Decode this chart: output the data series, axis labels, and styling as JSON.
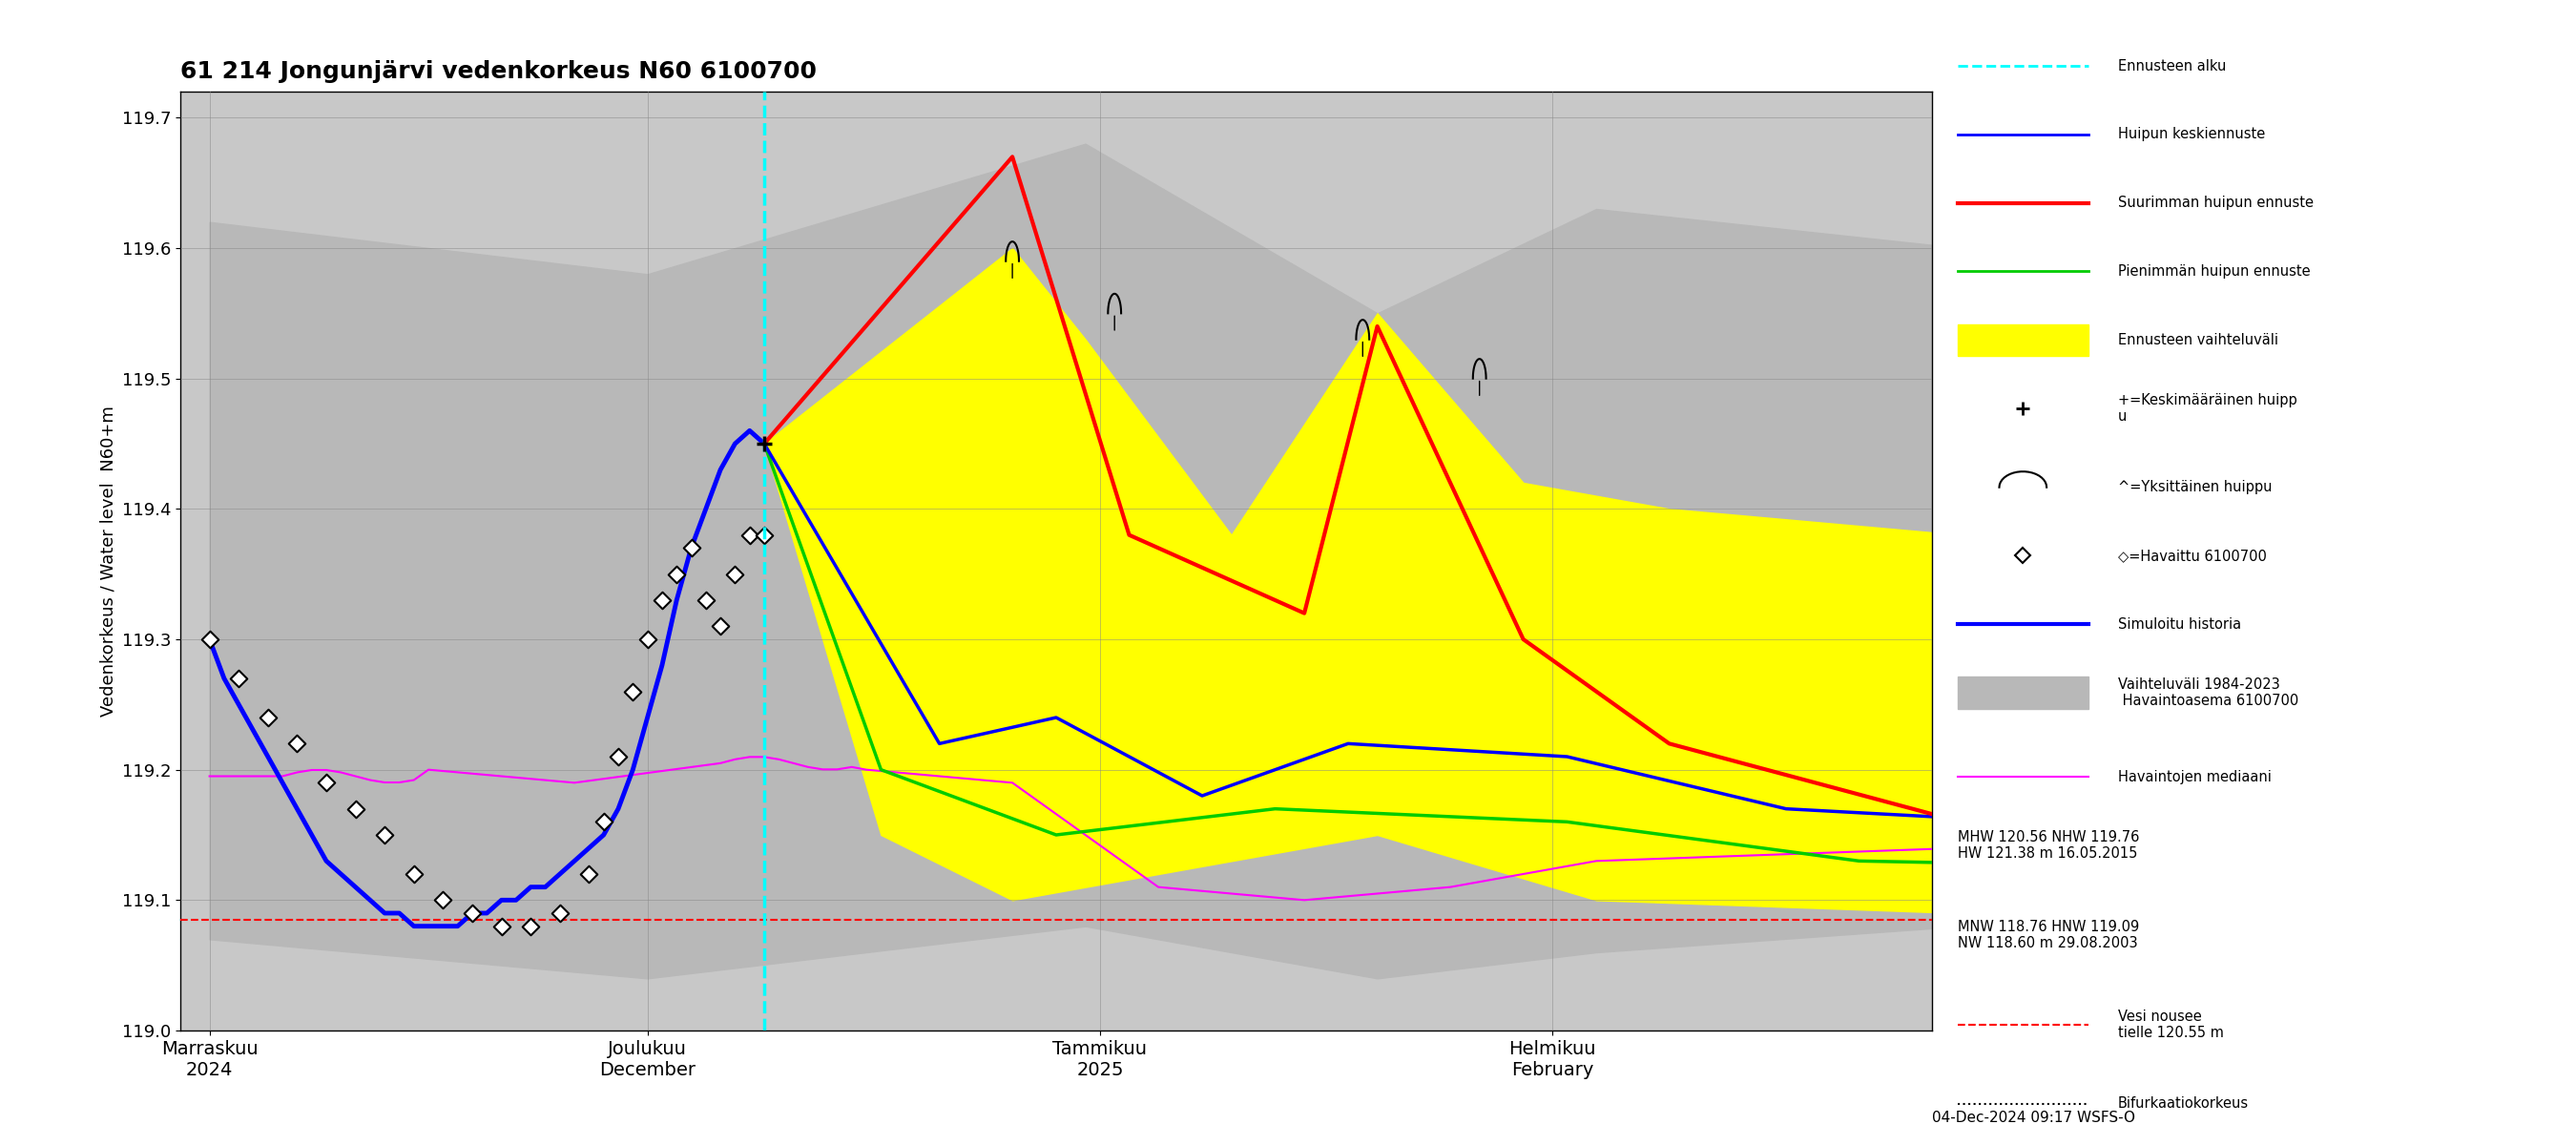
{
  "title": "61 214 Jongunjärvi vedenkorkeus N60 6100700",
  "ylabel1": "Vedenkorkeus / Water level",
  "ylabel2": "N60+m",
  "xlabel_bottom": "04-Dec-2024 09:17 WSFS-O",
  "ylim": [
    119.0,
    119.72
  ],
  "yticks": [
    119.0,
    119.1,
    119.2,
    119.3,
    119.4,
    119.5,
    119.6,
    119.7
  ],
  "background_color": "#ffffff",
  "plot_bg_color": "#c8c8c8",
  "red_dashed_y": 119.085,
  "forecast_start_x": 38,
  "legend_items": [
    {
      "label": "Ennusteen alku",
      "color": "#00ffff",
      "lw": 2,
      "ls": "dashed"
    },
    {
      "label": "Huipun keskiennuste",
      "color": "#0000ff",
      "lw": 2,
      "ls": "solid"
    },
    {
      "label": "Suurimman huipun ennuste",
      "color": "#ff0000",
      "lw": 3,
      "ls": "solid"
    },
    {
      "label": "Pienimmän huipun ennuste",
      "color": "#00cc00",
      "lw": 2,
      "ls": "solid"
    },
    {
      "label": "Ennusteen vaihteluväli",
      "color": "#ffff00",
      "lw": 0,
      "ls": "solid"
    },
    {
      "label": "+=Keskimääräinen huippu",
      "color": "#000000",
      "lw": 1,
      "ls": "solid"
    },
    {
      "label": "^=Yksittäinen huippu",
      "color": "#000000",
      "lw": 1,
      "ls": "solid"
    },
    {
      "label": "◇=Havaittu 6100700",
      "color": "#000000",
      "lw": 1,
      "ls": "solid"
    },
    {
      "label": "Simuloitu historia",
      "color": "#0000ff",
      "lw": 3,
      "ls": "solid"
    },
    {
      "label": "Vaihteluväli 1984-2023\n Havaintoasema 6100700",
      "color": "#aaaaaa",
      "lw": 0,
      "ls": "solid"
    },
    {
      "label": "Havaintojen mediaani",
      "color": "#ff00ff",
      "lw": 1.5,
      "ls": "solid"
    },
    {
      "label": "MHW 120.56 NHW 119.76\nHW 121.38 m 16.05.2015",
      "color": "#000000",
      "lw": 0,
      "ls": "solid"
    },
    {
      "label": "MNW 118.76 HNW 119.09\nNW 118.60 m 29.08.2003",
      "color": "#000000",
      "lw": 0,
      "ls": "solid"
    },
    {
      "label": "Vesi nousee\ntielle 120.55 m",
      "color": "#ff0000",
      "lw": 1,
      "ls": "dashed"
    },
    {
      "label": "Bifurkaatiokorkeus",
      "color": "#000000",
      "lw": 1,
      "ls": "dotted"
    }
  ],
  "x_tick_labels": [
    "Marraskuu\n2024",
    "Joulukuu\nDecember",
    "Tammikuu\n2025",
    "Helmikuu\nFebruary"
  ],
  "x_tick_positions": [
    0,
    30,
    61,
    92
  ]
}
